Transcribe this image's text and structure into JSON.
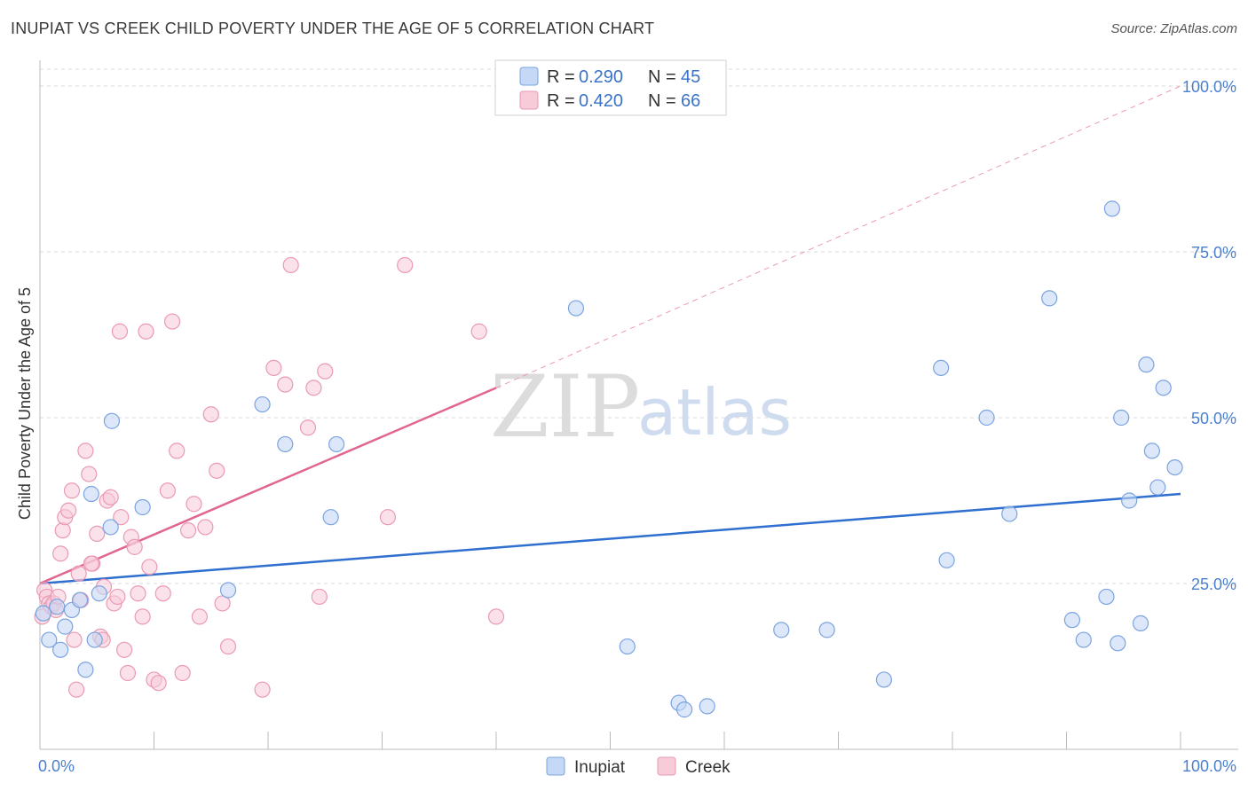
{
  "title": "INUPIAT VS CREEK CHILD POVERTY UNDER THE AGE OF 5 CORRELATION CHART",
  "source": "Source: ZipAtlas.com",
  "watermark": {
    "zip": "ZIP",
    "atlas": "atlas"
  },
  "legend": {
    "r_label": "R =",
    "n_label": "N =",
    "entries": [
      {
        "name": "Inupiat",
        "r": "0.290",
        "n": "45"
      },
      {
        "name": "Creek",
        "r": "0.420",
        "n": "66"
      }
    ]
  },
  "colors": {
    "inupiat_fill": "#c5d8f5",
    "inupiat_stroke": "#7ba3e0",
    "inupiat_line": "#2f6fd0",
    "creek_fill": "#f8cbd8",
    "creek_stroke": "#ea9ab3",
    "creek_line": "#e06690",
    "grid": "#d8d8d8"
  },
  "chart_data": {
    "type": "scatter",
    "title": "INUPIAT VS CREEK CHILD POVERTY UNDER THE AGE OF 5 CORRELATION CHART",
    "xlabel": "",
    "ylabel": "Child Poverty Under the Age of 5",
    "xlim": [
      0,
      100
    ],
    "ylim": [
      0,
      105
    ],
    "x_tick_labels": [
      "0.0%",
      "100.0%"
    ],
    "y_ticks": [
      25,
      50,
      75,
      100
    ],
    "y_tick_labels": [
      "25.0%",
      "50.0%",
      "75.0%",
      "100.0%"
    ],
    "grid": true,
    "legend_position": "top-center",
    "series": [
      {
        "name": "Inupiat",
        "points": [
          [
            0.3,
            20.5
          ],
          [
            0.8,
            16.5
          ],
          [
            1.5,
            21.5
          ],
          [
            1.8,
            15.0
          ],
          [
            2.2,
            18.5
          ],
          [
            2.8,
            21.0
          ],
          [
            3.5,
            22.5
          ],
          [
            4.0,
            12.0
          ],
          [
            4.5,
            38.5
          ],
          [
            4.8,
            16.5
          ],
          [
            5.2,
            23.5
          ],
          [
            6.2,
            33.5
          ],
          [
            6.3,
            49.5
          ],
          [
            9.0,
            36.5
          ],
          [
            16.5,
            24.0
          ],
          [
            19.5,
            52.0
          ],
          [
            21.5,
            46.0
          ],
          [
            25.5,
            35.0
          ],
          [
            26.0,
            46.0
          ],
          [
            47.0,
            66.5
          ],
          [
            51.5,
            15.5
          ],
          [
            56.0,
            7.0
          ],
          [
            56.5,
            6.0
          ],
          [
            58.5,
            6.5
          ],
          [
            65.0,
            18.0
          ],
          [
            69.0,
            18.0
          ],
          [
            74.0,
            10.5
          ],
          [
            79.0,
            57.5
          ],
          [
            79.5,
            28.5
          ],
          [
            83.0,
            50.0
          ],
          [
            85.0,
            35.5
          ],
          [
            88.5,
            68.0
          ],
          [
            90.5,
            19.5
          ],
          [
            91.5,
            16.5
          ],
          [
            93.5,
            23.0
          ],
          [
            94.0,
            81.5
          ],
          [
            94.5,
            16.0
          ],
          [
            94.8,
            50.0
          ],
          [
            95.5,
            37.5
          ],
          [
            96.5,
            19.0
          ],
          [
            97.0,
            58.0
          ],
          [
            97.5,
            45.0
          ],
          [
            98.0,
            39.5
          ],
          [
            98.5,
            54.5
          ],
          [
            99.5,
            42.5
          ]
        ],
        "trendline": {
          "x": [
            0,
            100
          ],
          "y": [
            25.0,
            38.5
          ]
        }
      },
      {
        "name": "Creek",
        "points": [
          [
            0.2,
            20.0
          ],
          [
            0.4,
            24.0
          ],
          [
            0.6,
            23.0
          ],
          [
            0.8,
            22.0
          ],
          [
            1.0,
            21.5
          ],
          [
            1.2,
            22.0
          ],
          [
            1.4,
            21.0
          ],
          [
            1.6,
            23.0
          ],
          [
            1.8,
            29.5
          ],
          [
            2.0,
            33.0
          ],
          [
            2.2,
            35.0
          ],
          [
            2.5,
            36.0
          ],
          [
            2.8,
            39.0
          ],
          [
            3.0,
            16.5
          ],
          [
            3.2,
            9.0
          ],
          [
            3.4,
            26.5
          ],
          [
            3.6,
            22.5
          ],
          [
            4.0,
            45.0
          ],
          [
            4.3,
            41.5
          ],
          [
            4.6,
            28.0
          ],
          [
            5.0,
            32.5
          ],
          [
            5.3,
            17.0
          ],
          [
            5.6,
            24.5
          ],
          [
            5.9,
            37.5
          ],
          [
            6.2,
            38.0
          ],
          [
            6.5,
            22.0
          ],
          [
            6.8,
            23.0
          ],
          [
            7.1,
            35.0
          ],
          [
            7.4,
            15.0
          ],
          [
            7.7,
            11.5
          ],
          [
            8.0,
            32.0
          ],
          [
            8.3,
            30.5
          ],
          [
            8.6,
            23.5
          ],
          [
            9.0,
            20.0
          ],
          [
            9.3,
            63.0
          ],
          [
            9.6,
            27.5
          ],
          [
            10.0,
            10.5
          ],
          [
            10.4,
            10.0
          ],
          [
            10.8,
            23.5
          ],
          [
            11.2,
            39.0
          ],
          [
            11.6,
            64.5
          ],
          [
            12.0,
            45.0
          ],
          [
            12.5,
            11.5
          ],
          [
            13.0,
            33.0
          ],
          [
            13.5,
            37.0
          ],
          [
            14.0,
            20.0
          ],
          [
            14.5,
            33.5
          ],
          [
            15.0,
            50.5
          ],
          [
            15.5,
            42.0
          ],
          [
            16.0,
            22.0
          ],
          [
            16.5,
            15.5
          ],
          [
            7.0,
            63.0
          ],
          [
            19.5,
            9.0
          ],
          [
            20.5,
            57.5
          ],
          [
            21.5,
            55.0
          ],
          [
            22.0,
            73.0
          ],
          [
            23.5,
            48.5
          ],
          [
            24.0,
            54.5
          ],
          [
            24.5,
            23.0
          ],
          [
            25.0,
            57.0
          ],
          [
            30.5,
            35.0
          ],
          [
            32.0,
            73.0
          ],
          [
            38.5,
            63.0
          ],
          [
            40.0,
            20.0
          ],
          [
            4.5,
            28.0
          ],
          [
            5.5,
            16.5
          ]
        ],
        "trendline": {
          "x": [
            0,
            40
          ],
          "y": [
            25.0,
            54.5
          ]
        },
        "trendline_extension": {
          "x": [
            40,
            100
          ],
          "y": [
            54.5,
            100.0
          ]
        }
      }
    ]
  }
}
